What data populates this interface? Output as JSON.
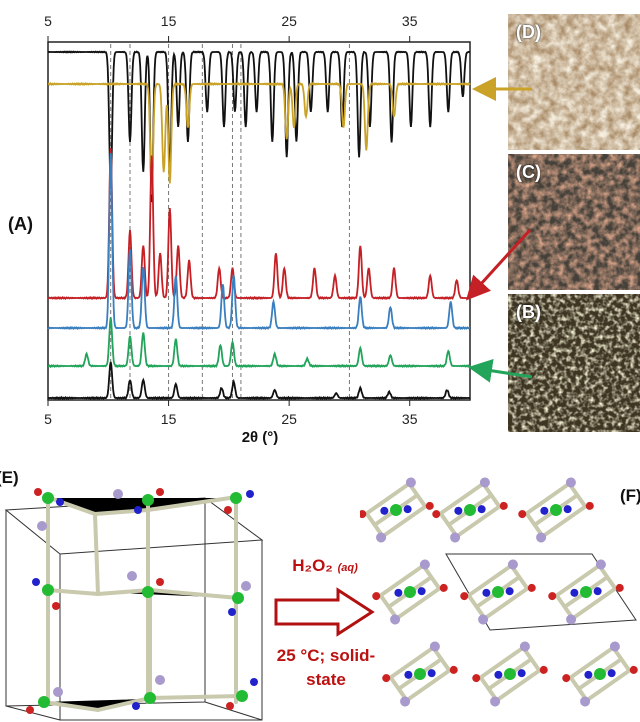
{
  "panels": {
    "A": "(A)",
    "B": "(B)",
    "C": "(C)",
    "D": "(D)",
    "E": "(E)",
    "F": "(F)"
  },
  "chart_data": {
    "type": "line",
    "xlabel": "2θ (°)",
    "xlim": [
      5,
      40
    ],
    "xticks": [
      5,
      15,
      25,
      35
    ],
    "grid": false,
    "reference_lines_2theta": [
      10.2,
      11.8,
      15.0,
      17.8,
      20.3,
      21.0,
      30.0
    ],
    "series": [
      {
        "color": "#111111",
        "peaks": [
          [
            10.2,
            0.9
          ],
          [
            11.8,
            0.6
          ],
          [
            12.9,
            0.8
          ],
          [
            13.6,
            1.0
          ],
          [
            15.1,
            0.8
          ],
          [
            15.8,
            0.5
          ],
          [
            16.6,
            0.6
          ],
          [
            18.2,
            0.4
          ],
          [
            19.6,
            0.5
          ],
          [
            20.5,
            0.4
          ],
          [
            21.4,
            0.5
          ],
          [
            22.3,
            0.4
          ],
          [
            23.6,
            0.6
          ],
          [
            24.8,
            0.7
          ],
          [
            25.6,
            0.6
          ],
          [
            26.8,
            0.4
          ],
          [
            28.2,
            0.4
          ],
          [
            29.4,
            0.5
          ],
          [
            30.8,
            0.7
          ],
          [
            31.7,
            0.5
          ],
          [
            33.5,
            0.6
          ],
          [
            35.1,
            0.5
          ],
          [
            36.7,
            0.5
          ],
          [
            38.2,
            0.4
          ],
          [
            39.4,
            0.3
          ]
        ]
      },
      {
        "color": "#c9a227",
        "peaks": [
          [
            13.6,
            1.0
          ],
          [
            14.6,
            0.8
          ],
          [
            15.1,
            0.9
          ],
          [
            16.6,
            0.4
          ],
          [
            24.8,
            0.5
          ],
          [
            25.4,
            0.4
          ],
          [
            26.4,
            0.3
          ],
          [
            29.5,
            0.4
          ],
          [
            31.4,
            0.6
          ],
          [
            33.7,
            0.3
          ]
        ]
      },
      {
        "color": "#c42025",
        "peaks": [
          [
            10.2,
            1.0
          ],
          [
            11.8,
            0.45
          ],
          [
            12.9,
            0.35
          ],
          [
            13.6,
            0.95
          ],
          [
            14.3,
            0.3
          ],
          [
            15.1,
            0.6
          ],
          [
            15.8,
            0.35
          ],
          [
            16.7,
            0.25
          ],
          [
            19.2,
            0.2
          ],
          [
            20.3,
            0.2
          ],
          [
            23.9,
            0.3
          ],
          [
            24.6,
            0.2
          ],
          [
            27.1,
            0.2
          ],
          [
            28.8,
            0.15
          ],
          [
            30.9,
            0.35
          ],
          [
            31.6,
            0.2
          ],
          [
            33.7,
            0.2
          ],
          [
            36.7,
            0.15
          ],
          [
            38.9,
            0.12
          ]
        ]
      },
      {
        "color": "#3a7fbf",
        "peaks": [
          [
            10.2,
            1.0
          ],
          [
            11.8,
            0.45
          ],
          [
            12.9,
            0.35
          ],
          [
            15.6,
            0.3
          ],
          [
            19.5,
            0.25
          ],
          [
            20.4,
            0.3
          ],
          [
            23.7,
            0.15
          ],
          [
            30.9,
            0.18
          ],
          [
            33.4,
            0.12
          ],
          [
            38.4,
            0.15
          ]
        ]
      },
      {
        "color": "#22a45a",
        "peaks": [
          [
            8.2,
            0.2
          ],
          [
            10.2,
            0.8
          ],
          [
            11.8,
            0.5
          ],
          [
            12.9,
            0.55
          ],
          [
            15.6,
            0.45
          ],
          [
            19.3,
            0.35
          ],
          [
            20.3,
            0.4
          ],
          [
            23.8,
            0.2
          ],
          [
            26.5,
            0.12
          ],
          [
            30.9,
            0.3
          ],
          [
            33.4,
            0.18
          ],
          [
            38.2,
            0.25
          ]
        ]
      },
      {
        "color": "#111111",
        "peaks": [
          [
            10.2,
            0.9
          ],
          [
            11.8,
            0.45
          ],
          [
            12.9,
            0.45
          ],
          [
            15.6,
            0.35
          ],
          [
            19.4,
            0.25
          ],
          [
            20.4,
            0.4
          ],
          [
            23.8,
            0.2
          ],
          [
            28.9,
            0.12
          ],
          [
            30.9,
            0.25
          ],
          [
            33.3,
            0.15
          ],
          [
            38.1,
            0.2
          ]
        ]
      }
    ]
  },
  "reaction": {
    "reagent": "H₂O₂",
    "reagent_sub": "(aq)",
    "condition_line1": "25 °C; solid-",
    "condition_line2": "state"
  },
  "colors": {
    "arrow_gold": "#c9a227",
    "arrow_red": "#c42025",
    "arrow_green": "#22a45a",
    "reaction_red": "#b11111"
  }
}
